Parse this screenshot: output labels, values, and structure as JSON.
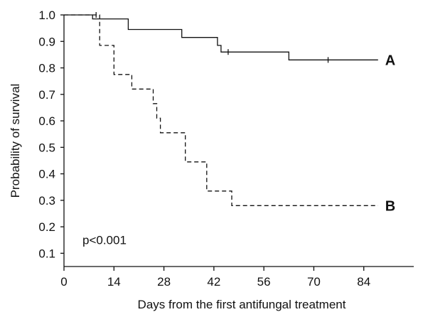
{
  "chart_data": {
    "type": "line",
    "subtype": "kaplan-meier step",
    "xlabel": "Days from the first antifungal treatment",
    "ylabel": "Probability of survival",
    "xlim": [
      0,
      98
    ],
    "ylim": [
      0.05,
      1.0
    ],
    "x_ticks": [
      0,
      14,
      28,
      42,
      56,
      70,
      84
    ],
    "y_ticks": [
      0.1,
      0.2,
      0.3,
      0.4,
      0.5,
      0.6,
      0.7,
      0.8,
      0.9,
      1.0
    ],
    "x_tick_labels": [
      "0",
      "14",
      "28",
      "42",
      "56",
      "70",
      "84"
    ],
    "y_tick_labels": [
      "0.1",
      "0.2",
      "0.3",
      "0.4",
      "0.5",
      "0.6",
      "0.7",
      "0.8",
      "0.9",
      "1.0"
    ],
    "grid": false,
    "annotation": "p<0.001",
    "series": [
      {
        "name": "A",
        "line_style": "solid",
        "steps": [
          [
            0,
            1.0
          ],
          [
            8,
            0.985
          ],
          [
            18,
            0.945
          ],
          [
            33,
            0.915
          ],
          [
            43,
            0.885
          ],
          [
            44,
            0.86
          ],
          [
            63,
            0.83
          ],
          [
            88,
            0.83
          ]
        ],
        "censored": [
          [
            46,
            0.86
          ],
          [
            74,
            0.83
          ]
        ]
      },
      {
        "name": "B",
        "line_style": "dashed",
        "steps": [
          [
            0,
            1.0
          ],
          [
            10,
            0.885
          ],
          [
            14,
            0.775
          ],
          [
            19,
            0.72
          ],
          [
            25,
            0.665
          ],
          [
            26,
            0.61
          ],
          [
            27,
            0.555
          ],
          [
            34,
            0.445
          ],
          [
            40,
            0.335
          ],
          [
            47,
            0.28
          ],
          [
            88,
            0.28
          ]
        ],
        "censored": [
          [
            9,
            1.0
          ]
        ]
      }
    ],
    "colors": {
      "ink": "#111111",
      "background": "#ffffff"
    }
  }
}
